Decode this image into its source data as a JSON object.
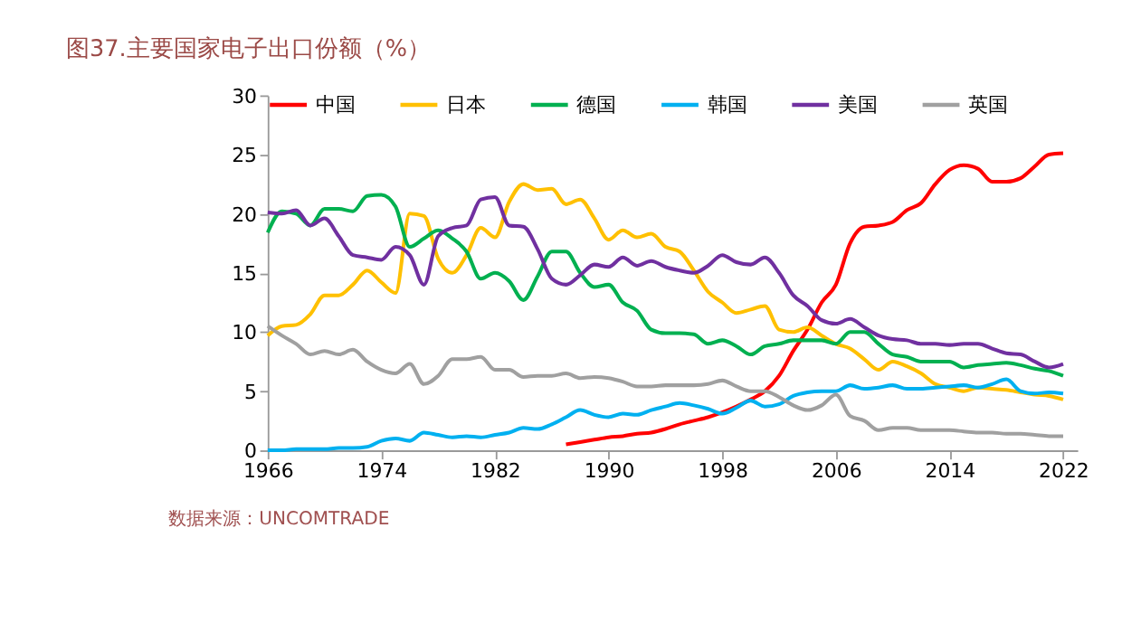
{
  "chart_data": {
    "type": "line",
    "title": "图37.主要国家电子出口份额（%）",
    "annotations": [
      "数据来源：UNCOMTRADE"
    ],
    "x": [
      1966,
      1967,
      1968,
      1969,
      1970,
      1971,
      1972,
      1973,
      1974,
      1975,
      1976,
      1977,
      1978,
      1979,
      1980,
      1981,
      1982,
      1983,
      1984,
      1985,
      1986,
      1987,
      1988,
      1989,
      1990,
      1991,
      1992,
      1993,
      1994,
      1995,
      1996,
      1997,
      1998,
      1999,
      2000,
      2001,
      2002,
      2003,
      2004,
      2005,
      2006,
      2007,
      2008,
      2009,
      2010,
      2011,
      2012,
      2013,
      2014,
      2015,
      2016,
      2017,
      2018,
      2019,
      2020,
      2021,
      2022
    ],
    "series": [
      {
        "name": "中国",
        "color": "#ff0000",
        "values": [
          null,
          null,
          null,
          null,
          null,
          null,
          null,
          null,
          null,
          null,
          null,
          null,
          null,
          null,
          null,
          null,
          null,
          null,
          null,
          null,
          null,
          0.5,
          0.7,
          0.9,
          1.1,
          1.2,
          1.4,
          1.5,
          1.8,
          2.2,
          2.5,
          2.8,
          3.2,
          3.7,
          4.3,
          5,
          6.3,
          8.4,
          10.2,
          12.5,
          14,
          17.5,
          18.9,
          19,
          19.3,
          20.3,
          20.9,
          22.5,
          23.7,
          24.1,
          23.8,
          22.7,
          22.7,
          23,
          24,
          25,
          25.1
        ]
      },
      {
        "name": "日本",
        "color": "#ffc000",
        "values": [
          9.7,
          10.5,
          10.6,
          11.5,
          13.1,
          13.1,
          14,
          15.2,
          14.2,
          13.3,
          20,
          19.8,
          16.2,
          15,
          16.5,
          18.8,
          18,
          21,
          22.5,
          22,
          22.1,
          20.8,
          21.2,
          19.6,
          17.8,
          18.6,
          18,
          18.3,
          17.2,
          16.8,
          15.2,
          13.4,
          12.5,
          11.6,
          11.9,
          12.2,
          10.2,
          10,
          10.4,
          9.7,
          9,
          8.6,
          7.7,
          6.8,
          7.5,
          7.1,
          6.5,
          5.6,
          5.3,
          5,
          5.3,
          5.2,
          5.1,
          4.9,
          4.7,
          4.6,
          4.3
        ]
      },
      {
        "name": "德国",
        "color": "#00b050",
        "values": [
          18.4,
          20.2,
          20,
          19,
          20.4,
          20.4,
          20.2,
          21.5,
          21.6,
          20.6,
          17.2,
          17.9,
          18.6,
          17.9,
          16.8,
          14.5,
          15,
          14.3,
          12.7,
          14.7,
          16.8,
          16.8,
          15,
          13.8,
          14,
          12.5,
          11.8,
          10.2,
          9.9,
          9.9,
          9.8,
          9,
          9.3,
          8.8,
          8.1,
          8.8,
          9,
          9.3,
          9.3,
          9.3,
          9,
          10,
          10,
          9,
          8.1,
          7.9,
          7.5,
          7.5,
          7.5,
          7,
          7.2,
          7.3,
          7.4,
          7.2,
          6.9,
          6.7,
          6.3
        ]
      },
      {
        "name": "韩国",
        "color": "#00b0f0",
        "values": [
          0,
          0,
          0.1,
          0.1,
          0.1,
          0.2,
          0.2,
          0.3,
          0.8,
          1,
          0.8,
          1.5,
          1.3,
          1.1,
          1.2,
          1.1,
          1.3,
          1.5,
          1.9,
          1.8,
          2.2,
          2.8,
          3.4,
          3,
          2.8,
          3.1,
          3,
          3.4,
          3.7,
          4,
          3.8,
          3.5,
          3.1,
          3.6,
          4.2,
          3.7,
          3.9,
          4.6,
          4.9,
          5,
          5,
          5.5,
          5.2,
          5.3,
          5.5,
          5.2,
          5.2,
          5.3,
          5.4,
          5.5,
          5.3,
          5.6,
          6,
          5,
          4.8,
          4.9,
          4.8
        ]
      },
      {
        "name": "美国",
        "color": "#7030a0",
        "values": [
          20.1,
          20,
          20.3,
          19,
          19.6,
          18.1,
          16.5,
          16.3,
          16.1,
          17.2,
          16.5,
          14,
          18.1,
          18.8,
          19,
          21.2,
          21.4,
          19,
          18.9,
          17,
          14.5,
          14,
          14.8,
          15.7,
          15.5,
          16.3,
          15.6,
          16,
          15.5,
          15.2,
          15,
          15.6,
          16.5,
          15.9,
          15.7,
          16.3,
          15,
          13.1,
          12.2,
          11,
          10.7,
          11.1,
          10.4,
          9.7,
          9.4,
          9.3,
          9,
          9,
          8.9,
          9,
          9,
          8.6,
          8.2,
          8.1,
          7.5,
          7,
          7.3
        ]
      },
      {
        "name": "英国",
        "color": "#a0a0a0",
        "values": [
          10.5,
          9.7,
          9,
          8.1,
          8.4,
          8.1,
          8.5,
          7.5,
          6.8,
          6.5,
          7.3,
          5.6,
          6.3,
          7.7,
          7.7,
          7.9,
          6.8,
          6.8,
          6.2,
          6.3,
          6.3,
          6.5,
          6.1,
          6.2,
          6.1,
          5.8,
          5.4,
          5.4,
          5.5,
          5.5,
          5.5,
          5.6,
          5.9,
          5.4,
          5,
          5,
          4.5,
          3.8,
          3.4,
          3.8,
          4.7,
          2.9,
          2.5,
          1.7,
          1.9,
          1.9,
          1.7,
          1.7,
          1.7,
          1.6,
          1.5,
          1.5,
          1.4,
          1.4,
          1.3,
          1.2,
          1.2
        ]
      }
    ],
    "xlim": [
      1966,
      2023
    ],
    "xticks": [
      1966,
      1974,
      1982,
      1990,
      1998,
      2006,
      2014,
      2022
    ],
    "ylim": [
      0,
      30
    ],
    "yticks": [
      0,
      5,
      10,
      15,
      20,
      25,
      30
    ],
    "grid": false,
    "legend": "top",
    "marker": "none",
    "line_style": "solid"
  }
}
